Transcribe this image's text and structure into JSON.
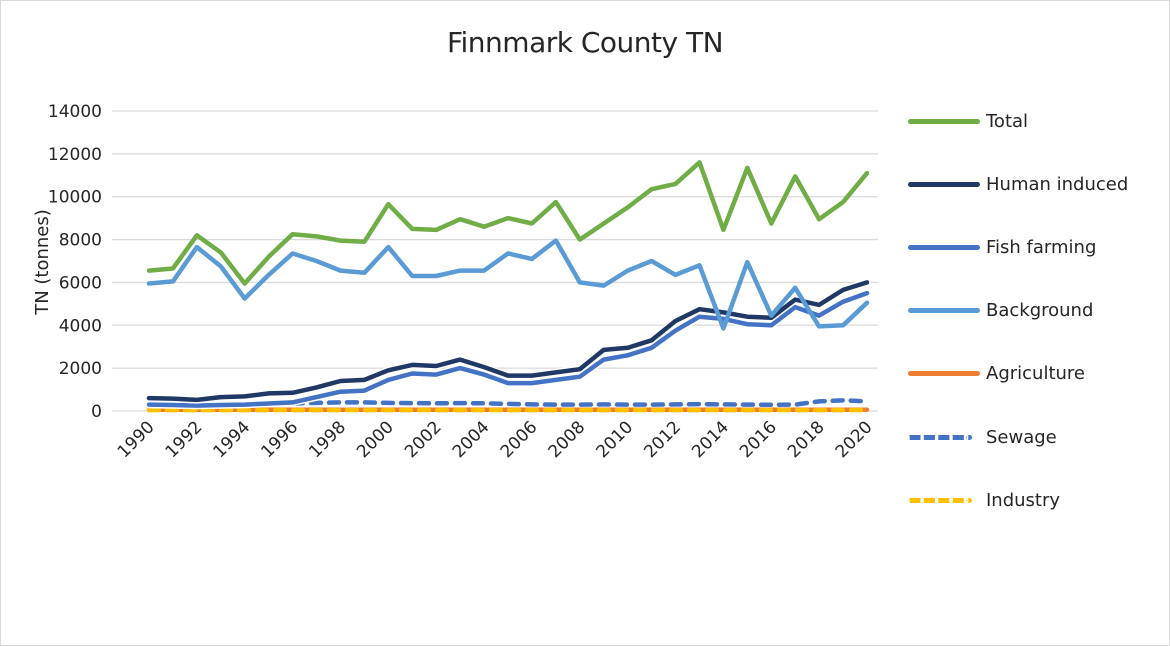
{
  "chart_data": {
    "type": "line",
    "title": "Finnmark County TN",
    "xlabel": "",
    "ylabel": "TN (tonnes)",
    "ylim": [
      0,
      14000
    ],
    "yticks": [
      0,
      2000,
      4000,
      6000,
      8000,
      10000,
      12000,
      14000
    ],
    "xtick_labels": [
      "1990",
      "1992",
      "1994",
      "1996",
      "1998",
      "2000",
      "2002",
      "2004",
      "2006",
      "2008",
      "2010",
      "2012",
      "2014",
      "2016",
      "2018",
      "2020"
    ],
    "grid": true,
    "legend_position": "right",
    "x": [
      1990,
      1991,
      1992,
      1993,
      1994,
      1995,
      1996,
      1997,
      1998,
      1999,
      2000,
      2001,
      2002,
      2003,
      2004,
      2005,
      2006,
      2007,
      2008,
      2009,
      2010,
      2011,
      2012,
      2013,
      2014,
      2015,
      2016,
      2017,
      2018,
      2019,
      2020
    ],
    "series": [
      {
        "name": "Total",
        "color": "#70ad47",
        "dash": false,
        "values": [
          6550,
          6650,
          8200,
          7400,
          5950,
          7200,
          8250,
          8150,
          7950,
          7900,
          9650,
          8500,
          8450,
          8950,
          8600,
          9000,
          8750,
          9750,
          8000,
          8750,
          9500,
          10350,
          10600,
          11600,
          8450,
          11350,
          8750,
          10950,
          8950,
          9750,
          11100
        ]
      },
      {
        "name": "Human induced",
        "color": "#203864",
        "dash": false,
        "values": [
          600,
          580,
          520,
          650,
          680,
          820,
          850,
          1100,
          1400,
          1450,
          1900,
          2150,
          2100,
          2400,
          2050,
          1650,
          1650,
          1800,
          1950,
          2850,
          2950,
          3300,
          4200,
          4750,
          4600,
          4400,
          4350,
          5200,
          4950,
          5650,
          6000
        ]
      },
      {
        "name": "Fish farming",
        "color": "#4472c4",
        "dash": false,
        "values": [
          300,
          280,
          250,
          280,
          300,
          350,
          400,
          650,
          900,
          950,
          1450,
          1750,
          1700,
          2000,
          1700,
          1300,
          1300,
          1450,
          1600,
          2400,
          2600,
          2950,
          3750,
          4400,
          4300,
          4050,
          4000,
          4850,
          4450,
          5100,
          5500
        ]
      },
      {
        "name": "Background",
        "color": "#5b9bd5",
        "dash": false,
        "values": [
          5950,
          6050,
          7650,
          6750,
          5250,
          6350,
          7350,
          7000,
          6550,
          6450,
          7650,
          6300,
          6300,
          6550,
          6550,
          7350,
          7100,
          7950,
          6000,
          5850,
          6550,
          7000,
          6350,
          6800,
          3850,
          6950,
          4450,
          5750,
          3950,
          4000,
          5050
        ]
      },
      {
        "name": "Agriculture",
        "color": "#ed7d31",
        "dash": false,
        "values": [
          60,
          60,
          60,
          60,
          60,
          60,
          60,
          60,
          60,
          60,
          60,
          60,
          60,
          60,
          60,
          60,
          60,
          60,
          60,
          60,
          60,
          60,
          60,
          60,
          60,
          60,
          60,
          60,
          60,
          60,
          60
        ]
      },
      {
        "name": "Sewage",
        "color": "#4472c4",
        "dash": true,
        "values": [
          280,
          280,
          270,
          290,
          300,
          330,
          350,
          380,
          400,
          400,
          380,
          370,
          360,
          370,
          360,
          330,
          310,
          300,
          300,
          310,
          300,
          300,
          310,
          320,
          310,
          300,
          290,
          300,
          450,
          500,
          450
        ]
      },
      {
        "name": "Industry",
        "color": "#ffc000",
        "dash": true,
        "values": [
          40,
          40,
          40,
          40,
          40,
          40,
          40,
          40,
          40,
          40,
          40,
          40,
          40,
          40,
          40,
          40,
          40,
          40,
          40,
          40,
          40,
          40,
          40,
          40,
          40,
          40,
          40,
          40,
          40,
          40,
          40
        ]
      }
    ]
  }
}
